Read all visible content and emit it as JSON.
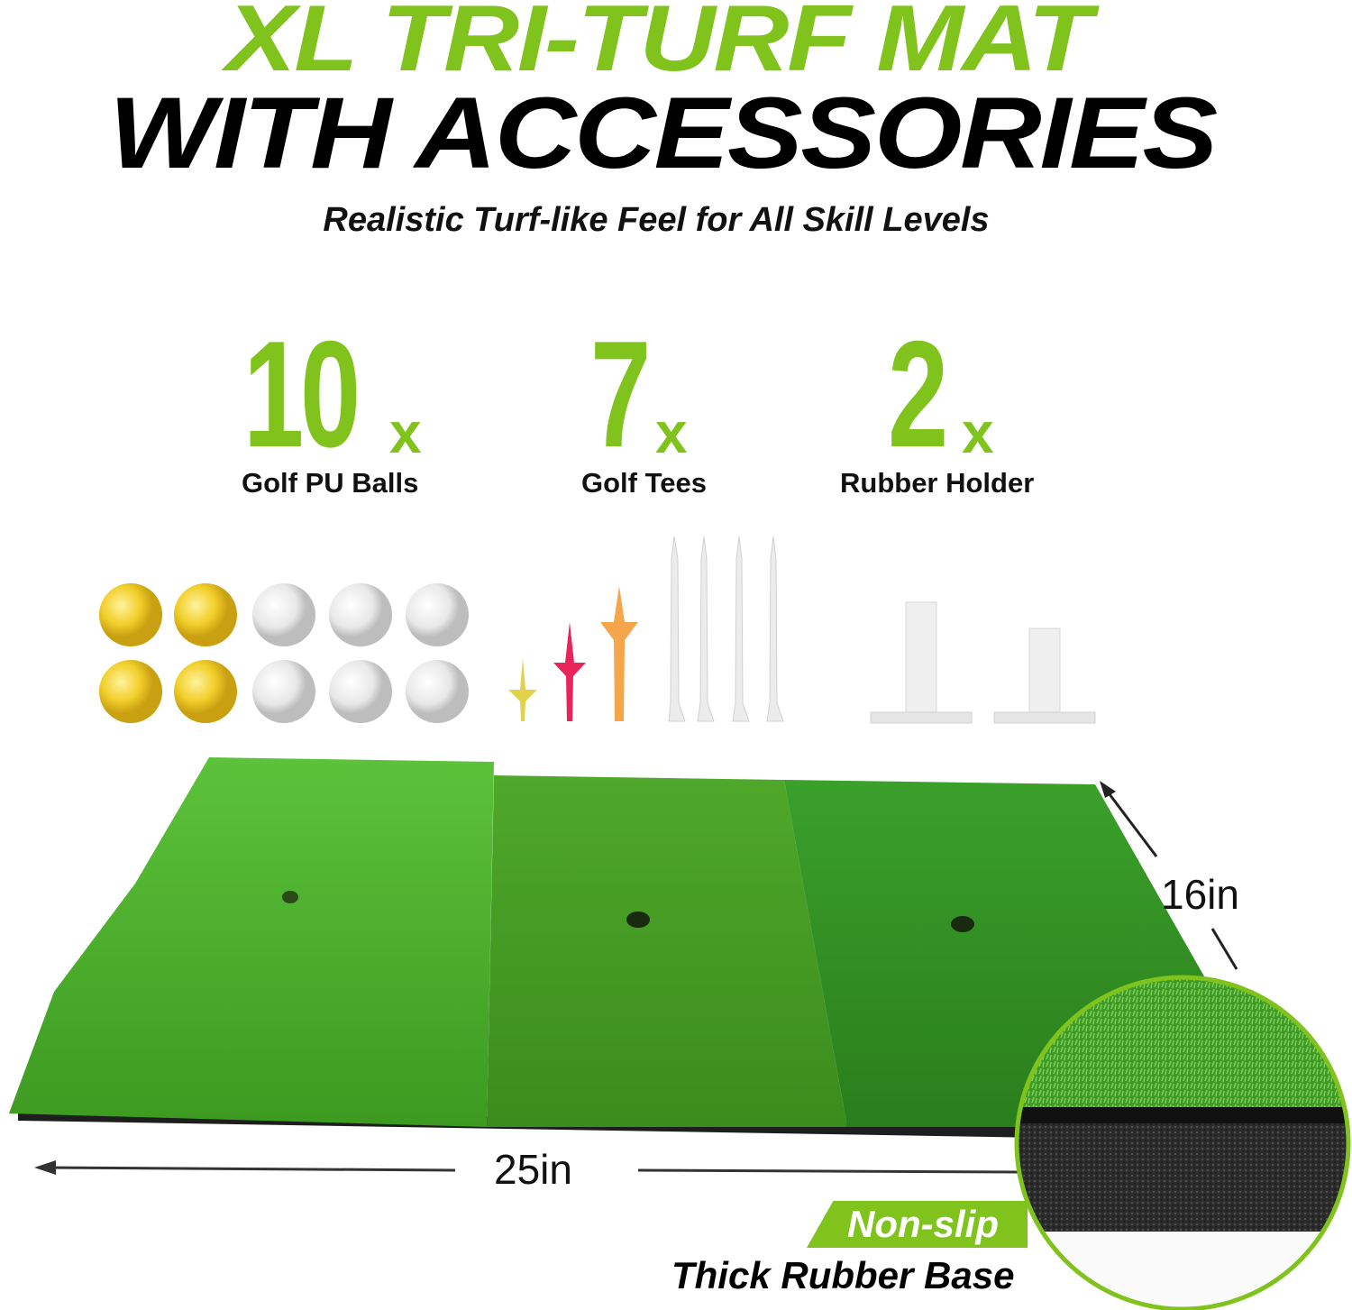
{
  "header": {
    "title_line1": "XL TRI-TURF MAT",
    "title_line2": "WITH ACCESSORIES",
    "subtitle": "Realistic Turf-like Feel for All Skill Levels"
  },
  "accessories": [
    {
      "count": "10",
      "suffix": "x",
      "label": "Golf PU Balls"
    },
    {
      "count": "7",
      "suffix": "x",
      "label": "Golf Tees"
    },
    {
      "count": "2",
      "suffix": "x",
      "label": "Rubber Holder"
    }
  ],
  "dimensions": {
    "width": "16in",
    "length": "25in"
  },
  "base_callout": {
    "highlight": "Non-slip",
    "text": "Thick Rubber Base"
  },
  "colors": {
    "brand_green": "#7fc31c",
    "ball_yellow": "#f2cf2a",
    "tee_pink": "#e8245a",
    "tee_orange": "#f5a54a"
  }
}
